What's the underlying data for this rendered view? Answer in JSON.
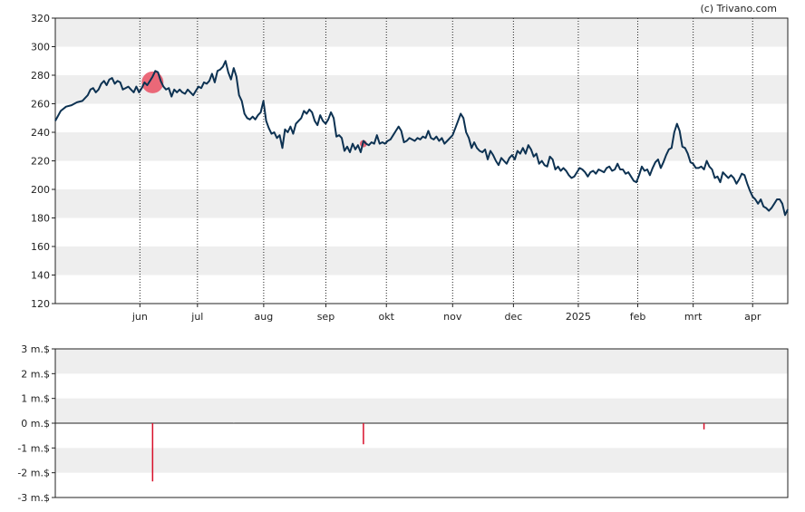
{
  "credit": "(c) Trivano.com",
  "colors": {
    "price_line": "#0d3252",
    "band": "#eeeeee",
    "marker": "#e8465a",
    "volume_bar": "#d8102a",
    "axis": "#222222"
  },
  "chart_data": [
    {
      "type": "line",
      "title": "",
      "xlabel": "",
      "ylabel": "",
      "ylim": [
        120,
        320
      ],
      "yticks": [
        "320",
        "300",
        "280",
        "260",
        "240",
        "220",
        "200",
        "180",
        "160",
        "140",
        "120"
      ],
      "month_labels": [
        "jun",
        "jul",
        "aug",
        "sep",
        "okt",
        "nov",
        "dec",
        "2025",
        "feb",
        "mrt",
        "apr"
      ],
      "month_positions": [
        31.3,
        52.6,
        77.1,
        100.1,
        122.5,
        147.0,
        169.5,
        193.5,
        215.5,
        236.0,
        258.0
      ],
      "x_range": [
        0,
        271
      ],
      "grid": "vertical dotted lines at month boundaries, alternating horizontal bands",
      "series": [
        {
          "values": [
            [
              0,
              248
            ],
            [
              2,
              255
            ],
            [
              4,
              258
            ],
            [
              6,
              259
            ],
            [
              8,
              261
            ],
            [
              10,
              262
            ],
            [
              12,
              266
            ],
            [
              13,
              270
            ],
            [
              14,
              271
            ],
            [
              15,
              268
            ],
            [
              16,
              270
            ],
            [
              17,
              274
            ],
            [
              18,
              276
            ],
            [
              19,
              273
            ],
            [
              20,
              277
            ],
            [
              21,
              278
            ],
            [
              22,
              274
            ],
            [
              23,
              276
            ],
            [
              24,
              275
            ],
            [
              25,
              270
            ],
            [
              26,
              271
            ],
            [
              27,
              272
            ],
            [
              28,
              270
            ],
            [
              29,
              268
            ],
            [
              30,
              272
            ],
            [
              31,
              268
            ],
            [
              32,
              271
            ],
            [
              33,
              275
            ],
            [
              34,
              273
            ],
            [
              35,
              276
            ],
            [
              36,
              279
            ],
            [
              37,
              283
            ],
            [
              38,
              282
            ],
            [
              39,
              276
            ],
            [
              40,
              272
            ],
            [
              41,
              270
            ],
            [
              42,
              271
            ],
            [
              43,
              265
            ],
            [
              44,
              270
            ],
            [
              45,
              268
            ],
            [
              46,
              270
            ],
            [
              47,
              268
            ],
            [
              48,
              267
            ],
            [
              49,
              270
            ],
            [
              50,
              268
            ],
            [
              51,
              266
            ],
            [
              52,
              269
            ],
            [
              53,
              272
            ],
            [
              54,
              271
            ],
            [
              55,
              275
            ],
            [
              56,
              274
            ],
            [
              57,
              276
            ],
            [
              58,
              281
            ],
            [
              59,
              275
            ],
            [
              60,
              283
            ],
            [
              61,
              284
            ],
            [
              62,
              286
            ],
            [
              63,
              290
            ],
            [
              64,
              282
            ],
            [
              65,
              277
            ],
            [
              66,
              285
            ],
            [
              67,
              279
            ],
            [
              68,
              266
            ],
            [
              69,
              262
            ],
            [
              70,
              253
            ],
            [
              71,
              250
            ],
            [
              72,
              249
            ],
            [
              73,
              251
            ],
            [
              74,
              249
            ],
            [
              75,
              252
            ],
            [
              76,
              254
            ],
            [
              77,
              262
            ],
            [
              78,
              248
            ],
            [
              79,
              243
            ],
            [
              80,
              239
            ],
            [
              81,
              240
            ],
            [
              82,
              236
            ],
            [
              83,
              238
            ],
            [
              84,
              229
            ],
            [
              85,
              242
            ],
            [
              86,
              240
            ],
            [
              87,
              244
            ],
            [
              88,
              239
            ],
            [
              89,
              246
            ],
            [
              90,
              248
            ],
            [
              91,
              250
            ],
            [
              92,
              255
            ],
            [
              93,
              253
            ],
            [
              94,
              256
            ],
            [
              95,
              254
            ],
            [
              96,
              248
            ],
            [
              97,
              245
            ],
            [
              98,
              252
            ],
            [
              99,
              248
            ],
            [
              100,
              246
            ],
            [
              101,
              249
            ],
            [
              102,
              254
            ],
            [
              103,
              250
            ],
            [
              104,
              237
            ],
            [
              105,
              238
            ],
            [
              106,
              236
            ],
            [
              107,
              227
            ],
            [
              108,
              230
            ],
            [
              109,
              226
            ],
            [
              110,
              232
            ],
            [
              111,
              228
            ],
            [
              112,
              231
            ],
            [
              113,
              226
            ],
            [
              114,
              234
            ],
            [
              115,
              232
            ],
            [
              116,
              231
            ],
            [
              117,
              233
            ],
            [
              118,
              232
            ],
            [
              119,
              238
            ],
            [
              120,
              232
            ],
            [
              121,
              233
            ],
            [
              122,
              232
            ],
            [
              123,
              234
            ],
            [
              124,
              235
            ],
            [
              125,
              238
            ],
            [
              126,
              241
            ],
            [
              127,
              244
            ],
            [
              128,
              241
            ],
            [
              129,
              233
            ],
            [
              130,
              234
            ],
            [
              131,
              236
            ],
            [
              132,
              235
            ],
            [
              133,
              234
            ],
            [
              134,
              236
            ],
            [
              135,
              235
            ],
            [
              136,
              237
            ],
            [
              137,
              236
            ],
            [
              138,
              241
            ],
            [
              139,
              236
            ],
            [
              140,
              235
            ],
            [
              141,
              237
            ],
            [
              142,
              234
            ],
            [
              143,
              236
            ],
            [
              144,
              232
            ],
            [
              145,
              234
            ],
            [
              146,
              236
            ],
            [
              147,
              238
            ],
            [
              148,
              243
            ],
            [
              149,
              248
            ],
            [
              150,
              253
            ],
            [
              151,
              250
            ],
            [
              152,
              240
            ],
            [
              153,
              236
            ],
            [
              154,
              229
            ],
            [
              155,
              233
            ],
            [
              156,
              229
            ],
            [
              157,
              227
            ],
            [
              158,
              226
            ],
            [
              159,
              228
            ],
            [
              160,
              221
            ],
            [
              161,
              227
            ],
            [
              162,
              224
            ],
            [
              163,
              220
            ],
            [
              164,
              217
            ],
            [
              165,
              222
            ],
            [
              166,
              220
            ],
            [
              167,
              218
            ],
            [
              168,
              222
            ],
            [
              169,
              224
            ],
            [
              170,
              221
            ],
            [
              171,
              227
            ],
            [
              172,
              225
            ],
            [
              173,
              229
            ],
            [
              174,
              225
            ],
            [
              175,
              231
            ],
            [
              176,
              228
            ],
            [
              177,
              223
            ],
            [
              178,
              225
            ],
            [
              179,
              218
            ],
            [
              180,
              220
            ],
            [
              181,
              217
            ],
            [
              182,
              216
            ],
            [
              183,
              223
            ],
            [
              184,
              221
            ],
            [
              185,
              214
            ],
            [
              186,
              216
            ],
            [
              187,
              213
            ],
            [
              188,
              215
            ],
            [
              189,
              213
            ],
            [
              190,
              210
            ],
            [
              191,
              208
            ],
            [
              192,
              209
            ],
            [
              193,
              212
            ],
            [
              194,
              215
            ],
            [
              195,
              214
            ],
            [
              196,
              212
            ],
            [
              197,
              209
            ],
            [
              198,
              212
            ],
            [
              199,
              213
            ],
            [
              200,
              211
            ],
            [
              201,
              214
            ],
            [
              202,
              213
            ],
            [
              203,
              212
            ],
            [
              204,
              215
            ],
            [
              205,
              216
            ],
            [
              206,
              213
            ],
            [
              207,
              214
            ],
            [
              208,
              218
            ],
            [
              209,
              214
            ],
            [
              210,
              214
            ],
            [
              211,
              211
            ],
            [
              212,
              212
            ],
            [
              213,
              209
            ],
            [
              214,
              206
            ],
            [
              215,
              205
            ],
            [
              216,
              210
            ],
            [
              217,
              216
            ],
            [
              218,
              213
            ],
            [
              219,
              214
            ],
            [
              220,
              210
            ],
            [
              221,
              215
            ],
            [
              222,
              219
            ],
            [
              223,
              221
            ],
            [
              224,
              215
            ],
            [
              225,
              219
            ],
            [
              226,
              224
            ],
            [
              227,
              228
            ],
            [
              228,
              229
            ],
            [
              229,
              240
            ],
            [
              230,
              246
            ],
            [
              231,
              241
            ],
            [
              232,
              230
            ],
            [
              233,
              229
            ],
            [
              234,
              225
            ],
            [
              235,
              219
            ],
            [
              236,
              218
            ],
            [
              237,
              215
            ],
            [
              238,
              215
            ],
            [
              239,
              216
            ],
            [
              240,
              214
            ],
            [
              241,
              220
            ],
            [
              242,
              216
            ],
            [
              243,
              214
            ],
            [
              244,
              208
            ],
            [
              245,
              209
            ],
            [
              246,
              205
            ],
            [
              247,
              212
            ],
            [
              248,
              210
            ],
            [
              249,
              208
            ],
            [
              250,
              210
            ],
            [
              251,
              208
            ],
            [
              252,
              204
            ],
            [
              253,
              207
            ],
            [
              254,
              211
            ],
            [
              255,
              210
            ],
            [
              256,
              204
            ],
            [
              257,
              199
            ],
            [
              258,
              195
            ],
            [
              259,
              193
            ],
            [
              260,
              190
            ],
            [
              261,
              193
            ],
            [
              262,
              188
            ],
            [
              263,
              187
            ],
            [
              264,
              185
            ],
            [
              265,
              187
            ],
            [
              266,
              190
            ],
            [
              267,
              193
            ],
            [
              268,
              193
            ],
            [
              269,
              190
            ],
            [
              270,
              182
            ],
            [
              271,
              186
            ]
          ]
        }
      ],
      "annotations": [
        {
          "label": "",
          "x": 36,
          "y": 275,
          "size": "large"
        },
        {
          "label": "",
          "x": 114,
          "y": 232,
          "size": "small"
        }
      ]
    },
    {
      "type": "bar",
      "title": "",
      "ylim": [
        -3,
        3
      ],
      "yticks": [
        "3 m.$",
        "2 m.$",
        "1 m.$",
        "0 m.$",
        "-1 m.$",
        "-2 m.$",
        "-3 m.$"
      ],
      "units": "m.$",
      "values": [
        {
          "x": 36,
          "value": -2.35
        },
        {
          "x": 66,
          "value": 0.02
        },
        {
          "x": 114,
          "value": -0.85
        },
        {
          "x": 240,
          "value": -0.25
        }
      ]
    }
  ]
}
